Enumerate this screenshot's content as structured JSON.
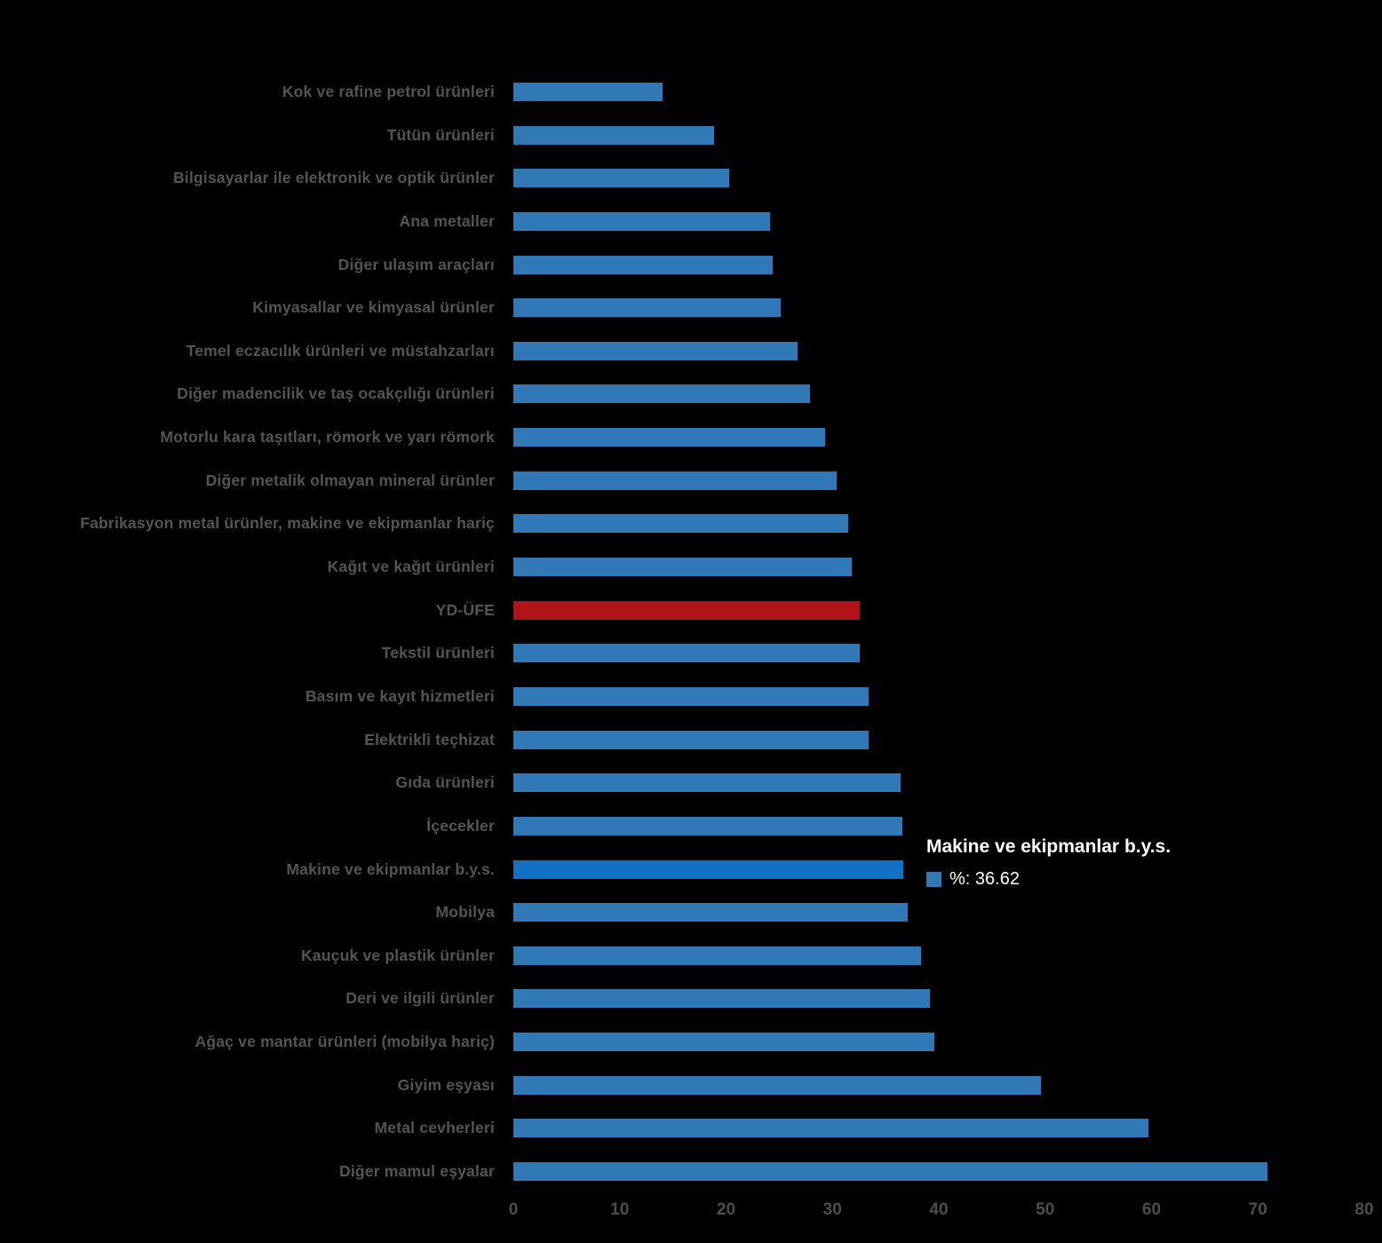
{
  "chart_data": {
    "type": "bar",
    "orientation": "horizontal",
    "title": "",
    "xlabel": "",
    "ylabel": "",
    "xlim": [
      0,
      80
    ],
    "x_ticks": [
      0,
      10,
      20,
      30,
      40,
      50,
      60,
      70,
      80
    ],
    "grid": false,
    "legend_position": "none",
    "categories": [
      "Kok ve rafine petrol ürünleri",
      "Tütün ürünleri",
      "Bilgisayarlar ile elektronik ve optik ürünler",
      "Ana metaller",
      "Diğer ulaşım araçları",
      "Kimyasallar ve kimyasal ürünler",
      "Temel eczacılık ürünleri ve müstahzarları",
      "Diğer madencilik ve taş ocakçılığı ürünleri",
      "Motorlu kara taşıtları, römork ve yarı römork",
      "Diğer metalik olmayan mineral ürünler",
      "Fabrikasyon metal ürünler, makine ve ekipmanlar hariç",
      "Kağıt ve kağıt ürünleri",
      "YD-ÜFE",
      "Tekstil ürünleri",
      "Basım ve kayıt hizmetleri",
      "Elektrikli teçhizat",
      "Gıda ürünleri",
      "İçecekler",
      "Makine ve ekipmanlar b.y.s.",
      "Mobilya",
      "Kauçuk ve plastik ürünler",
      "Deri ve ilgili ürünler",
      "Ağaç ve mantar ürünleri (mobilya hariç)",
      "Giyim eşyası",
      "Metal cevherleri",
      "Diğer mamul eşyalar"
    ],
    "values": [
      14.0,
      18.9,
      20.3,
      24.1,
      24.4,
      25.1,
      26.7,
      27.9,
      29.3,
      30.4,
      31.5,
      31.8,
      32.6,
      32.6,
      33.4,
      33.4,
      36.4,
      36.6,
      36.62,
      37.1,
      38.3,
      39.2,
      39.6,
      49.6,
      59.7,
      70.9
    ],
    "color_roles": [
      "default",
      "default",
      "default",
      "default",
      "default",
      "default",
      "default",
      "default",
      "default",
      "default",
      "default",
      "default",
      "emphasis",
      "default",
      "default",
      "default",
      "default",
      "default",
      "highlight",
      "default",
      "default",
      "default",
      "default",
      "default",
      "default",
      "default"
    ],
    "colors": {
      "background": "#000000",
      "default_bar": "#3178B6",
      "highlight_bar": "#1172C4",
      "emphasis_bar": "#B01318",
      "category_label": "#545454",
      "tick_label": "#4D4D4D",
      "tooltip_text": "#FFFFFF"
    },
    "tooltip": {
      "title": "Makine ve ekipmanlar b.y.s.",
      "value_text": "%: 36.62",
      "swatch_color": "#3178B6"
    }
  }
}
